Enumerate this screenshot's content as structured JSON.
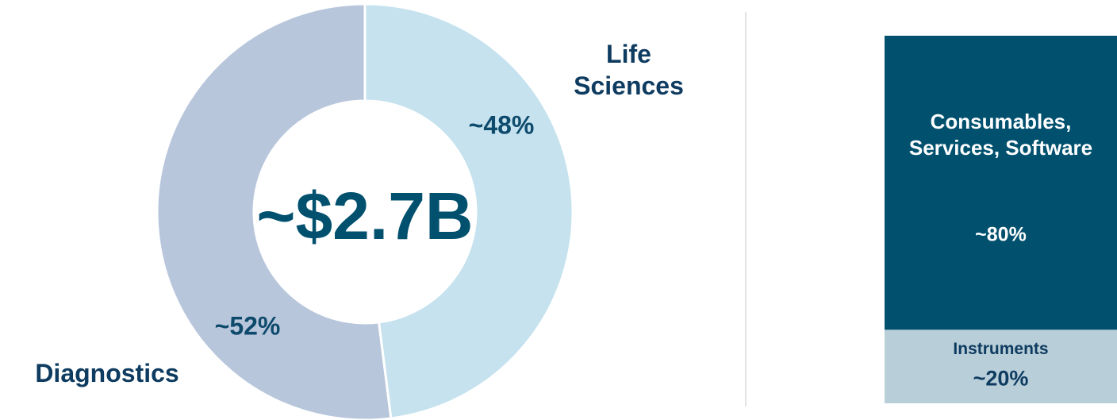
{
  "chart_data": [
    {
      "type": "pie",
      "donut": true,
      "center_label": "~$2.7B",
      "categories": [
        "Life Sciences",
        "Diagnostics"
      ],
      "values": [
        48,
        52
      ],
      "value_labels": [
        "~48%",
        "~52%"
      ],
      "colors": [
        "#c5e2ee",
        "#b8c6dc"
      ]
    },
    {
      "type": "bar",
      "stacked": true,
      "categories": [
        "Consumables, Services, Software",
        "Instruments"
      ],
      "values": [
        80,
        20
      ],
      "value_labels": [
        "~80%",
        "~20%"
      ],
      "colors": [
        "#00506e",
        "#b8ced8"
      ]
    }
  ]
}
